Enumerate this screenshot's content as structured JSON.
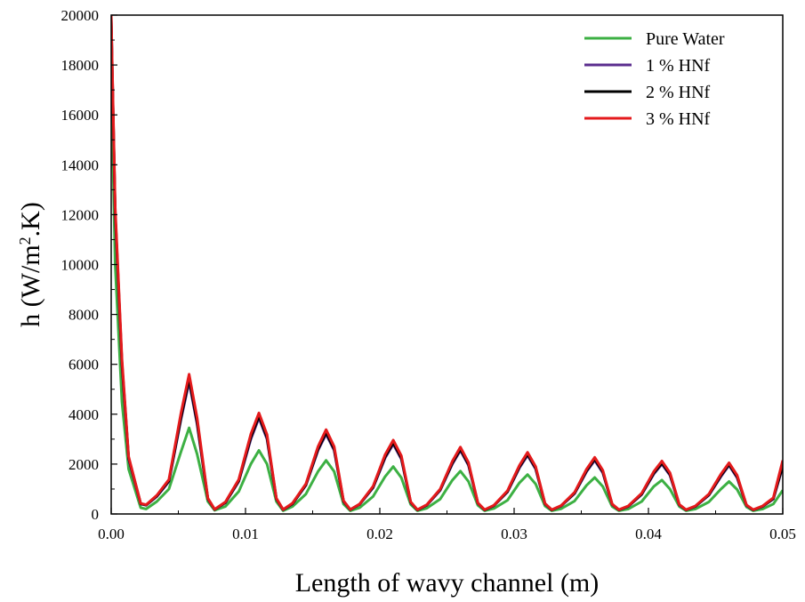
{
  "chart_data": {
    "type": "line",
    "xlabel": "Length of wavy channel (m)",
    "ylabel_main": "h (W/m",
    "ylabel_sup": "2",
    "ylabel_tail": ".K)",
    "xlim": [
      0,
      0.05
    ],
    "ylim": [
      0,
      20000
    ],
    "x_ticks": [
      0,
      0.01,
      0.02,
      0.03,
      0.04,
      0.05
    ],
    "x_tick_labels": [
      "0.00",
      "0.01",
      "0.02",
      "0.03",
      "0.04",
      "0.05"
    ],
    "y_ticks": [
      0,
      2000,
      4000,
      6000,
      8000,
      10000,
      12000,
      14000,
      16000,
      18000,
      20000
    ],
    "y_tick_labels": [
      "0",
      "2000",
      "4000",
      "6000",
      "8000",
      "10000",
      "12000",
      "14000",
      "16000",
      "18000",
      "20000"
    ],
    "grid": false,
    "legend_position": "top-right",
    "series": [
      {
        "name": "Pure Water",
        "color": "#3cb043",
        "x": [
          0,
          0.0003,
          0.0008,
          0.0013,
          0.0022,
          0.0026,
          0.0034,
          0.0043,
          0.0052,
          0.0058,
          0.0064,
          0.0072,
          0.0077,
          0.0085,
          0.0095,
          0.0104,
          0.011,
          0.0116,
          0.0123,
          0.0128,
          0.0135,
          0.0145,
          0.0154,
          0.016,
          0.0166,
          0.0173,
          0.0178,
          0.0185,
          0.0195,
          0.0204,
          0.021,
          0.0216,
          0.0223,
          0.0228,
          0.0235,
          0.0245,
          0.0254,
          0.026,
          0.0266,
          0.0273,
          0.0278,
          0.0285,
          0.0295,
          0.0304,
          0.031,
          0.0316,
          0.0323,
          0.0328,
          0.0335,
          0.0345,
          0.0354,
          0.036,
          0.0366,
          0.0373,
          0.0378,
          0.0385,
          0.0395,
          0.0404,
          0.041,
          0.0416,
          0.0423,
          0.0428,
          0.0435,
          0.0445,
          0.0454,
          0.046,
          0.0466,
          0.0473,
          0.0478,
          0.0485,
          0.0493,
          0.05
        ],
        "values": [
          17500,
          10000,
          4500,
          1800,
          250,
          200,
          500,
          1000,
          2500,
          3450,
          2400,
          500,
          150,
          300,
          900,
          2000,
          2550,
          2000,
          500,
          130,
          300,
          800,
          1700,
          2150,
          1700,
          400,
          130,
          250,
          700,
          1500,
          1900,
          1450,
          380,
          130,
          230,
          600,
          1350,
          1720,
          1300,
          350,
          130,
          220,
          550,
          1250,
          1580,
          1200,
          320,
          130,
          210,
          520,
          1150,
          1460,
          1100,
          300,
          130,
          200,
          500,
          1100,
          1360,
          1000,
          300,
          130,
          200,
          480,
          1000,
          1300,
          980,
          280,
          130,
          200,
          400,
          950
        ]
      },
      {
        "name": "1 % HNf",
        "color": "#5b2d8e",
        "x": [
          0,
          0.0003,
          0.0008,
          0.0013,
          0.0022,
          0.0026,
          0.0034,
          0.0043,
          0.0052,
          0.0058,
          0.0064,
          0.0072,
          0.0077,
          0.0085,
          0.0095,
          0.0104,
          0.011,
          0.0116,
          0.0123,
          0.0128,
          0.0135,
          0.0145,
          0.0154,
          0.016,
          0.0166,
          0.0173,
          0.0178,
          0.0185,
          0.0195,
          0.0204,
          0.021,
          0.0216,
          0.0223,
          0.0228,
          0.0235,
          0.0245,
          0.0254,
          0.026,
          0.0266,
          0.0273,
          0.0278,
          0.0285,
          0.0295,
          0.0304,
          0.031,
          0.0316,
          0.0323,
          0.0328,
          0.0335,
          0.0345,
          0.0354,
          0.036,
          0.0366,
          0.0373,
          0.0378,
          0.0385,
          0.0395,
          0.0404,
          0.041,
          0.0416,
          0.0423,
          0.0428,
          0.0435,
          0.0445,
          0.0454,
          0.046,
          0.0466,
          0.0473,
          0.0478,
          0.0485,
          0.0493,
          0.05
        ],
        "values": [
          19800,
          12000,
          6000,
          2200,
          400,
          350,
          700,
          1300,
          3800,
          5300,
          3600,
          600,
          180,
          450,
          1300,
          3000,
          3850,
          3000,
          600,
          170,
          400,
          1150,
          2550,
          3200,
          2550,
          500,
          170,
          380,
          1050,
          2250,
          2800,
          2200,
          460,
          160,
          350,
          950,
          2000,
          2550,
          1950,
          430,
          160,
          330,
          880,
          1850,
          2350,
          1800,
          400,
          160,
          320,
          820,
          1700,
          2150,
          1650,
          380,
          160,
          300,
          780,
          1600,
          2000,
          1550,
          360,
          160,
          300,
          750,
          1500,
          1950,
          1450,
          340,
          160,
          300,
          600,
          1900
        ]
      },
      {
        "name": "2 % HNf",
        "color": "#000000",
        "x": [
          0,
          0.0003,
          0.0008,
          0.0013,
          0.0022,
          0.0026,
          0.0034,
          0.0043,
          0.0052,
          0.0058,
          0.0064,
          0.0072,
          0.0077,
          0.0085,
          0.0095,
          0.0104,
          0.011,
          0.0116,
          0.0123,
          0.0128,
          0.0135,
          0.0145,
          0.0154,
          0.016,
          0.0166,
          0.0173,
          0.0178,
          0.0185,
          0.0195,
          0.0204,
          0.021,
          0.0216,
          0.0223,
          0.0228,
          0.0235,
          0.0245,
          0.0254,
          0.026,
          0.0266,
          0.0273,
          0.0278,
          0.0285,
          0.0295,
          0.0304,
          0.031,
          0.0316,
          0.0323,
          0.0328,
          0.0335,
          0.0345,
          0.0354,
          0.036,
          0.0366,
          0.0373,
          0.0378,
          0.0385,
          0.0395,
          0.0404,
          0.041,
          0.0416,
          0.0423,
          0.0428,
          0.0435,
          0.0445,
          0.0454,
          0.046,
          0.0466,
          0.0473,
          0.0478,
          0.0485,
          0.0493,
          0.05
        ],
        "values": [
          19900,
          12100,
          6050,
          2250,
          410,
          360,
          720,
          1330,
          3870,
          5420,
          3680,
          610,
          180,
          460,
          1330,
          3080,
          3930,
          3070,
          610,
          170,
          410,
          1170,
          2600,
          3270,
          2600,
          510,
          170,
          390,
          1070,
          2300,
          2860,
          2250,
          470,
          160,
          360,
          970,
          2040,
          2600,
          1990,
          440,
          160,
          340,
          900,
          1890,
          2400,
          1840,
          410,
          160,
          330,
          840,
          1740,
          2200,
          1690,
          390,
          160,
          310,
          800,
          1640,
          2040,
          1590,
          370,
          160,
          310,
          770,
          1540,
          1990,
          1490,
          350,
          160,
          310,
          620,
          1950
        ]
      },
      {
        "name": "3 % HNf",
        "color": "#e41a1c",
        "x": [
          0,
          0.0003,
          0.0008,
          0.0013,
          0.0022,
          0.0026,
          0.0034,
          0.0043,
          0.0052,
          0.0058,
          0.0064,
          0.0072,
          0.0077,
          0.0085,
          0.0095,
          0.0104,
          0.011,
          0.0116,
          0.0123,
          0.0128,
          0.0135,
          0.0145,
          0.0154,
          0.016,
          0.0166,
          0.0173,
          0.0178,
          0.0185,
          0.0195,
          0.0204,
          0.021,
          0.0216,
          0.0223,
          0.0228,
          0.0235,
          0.0245,
          0.0254,
          0.026,
          0.0266,
          0.0273,
          0.0278,
          0.0285,
          0.0295,
          0.0304,
          0.031,
          0.0316,
          0.0323,
          0.0328,
          0.0335,
          0.0345,
          0.0354,
          0.036,
          0.0366,
          0.0373,
          0.0378,
          0.0385,
          0.0395,
          0.0404,
          0.041,
          0.0416,
          0.0423,
          0.0428,
          0.0435,
          0.0445,
          0.0454,
          0.046,
          0.0466,
          0.0473,
          0.0478,
          0.0485,
          0.0493,
          0.05
        ],
        "values": [
          20000,
          12300,
          6200,
          2300,
          420,
          370,
          750,
          1380,
          4050,
          5600,
          3850,
          630,
          190,
          480,
          1380,
          3200,
          4050,
          3180,
          630,
          180,
          430,
          1210,
          2700,
          3380,
          2700,
          530,
          180,
          400,
          1110,
          2380,
          2960,
          2330,
          490,
          170,
          370,
          1000,
          2110,
          2680,
          2060,
          450,
          170,
          350,
          930,
          1950,
          2470,
          1900,
          420,
          170,
          340,
          870,
          1800,
          2270,
          1750,
          400,
          170,
          320,
          830,
          1700,
          2120,
          1650,
          380,
          170,
          320,
          800,
          1600,
          2050,
          1550,
          360,
          170,
          320,
          650,
          2150
        ]
      }
    ]
  }
}
